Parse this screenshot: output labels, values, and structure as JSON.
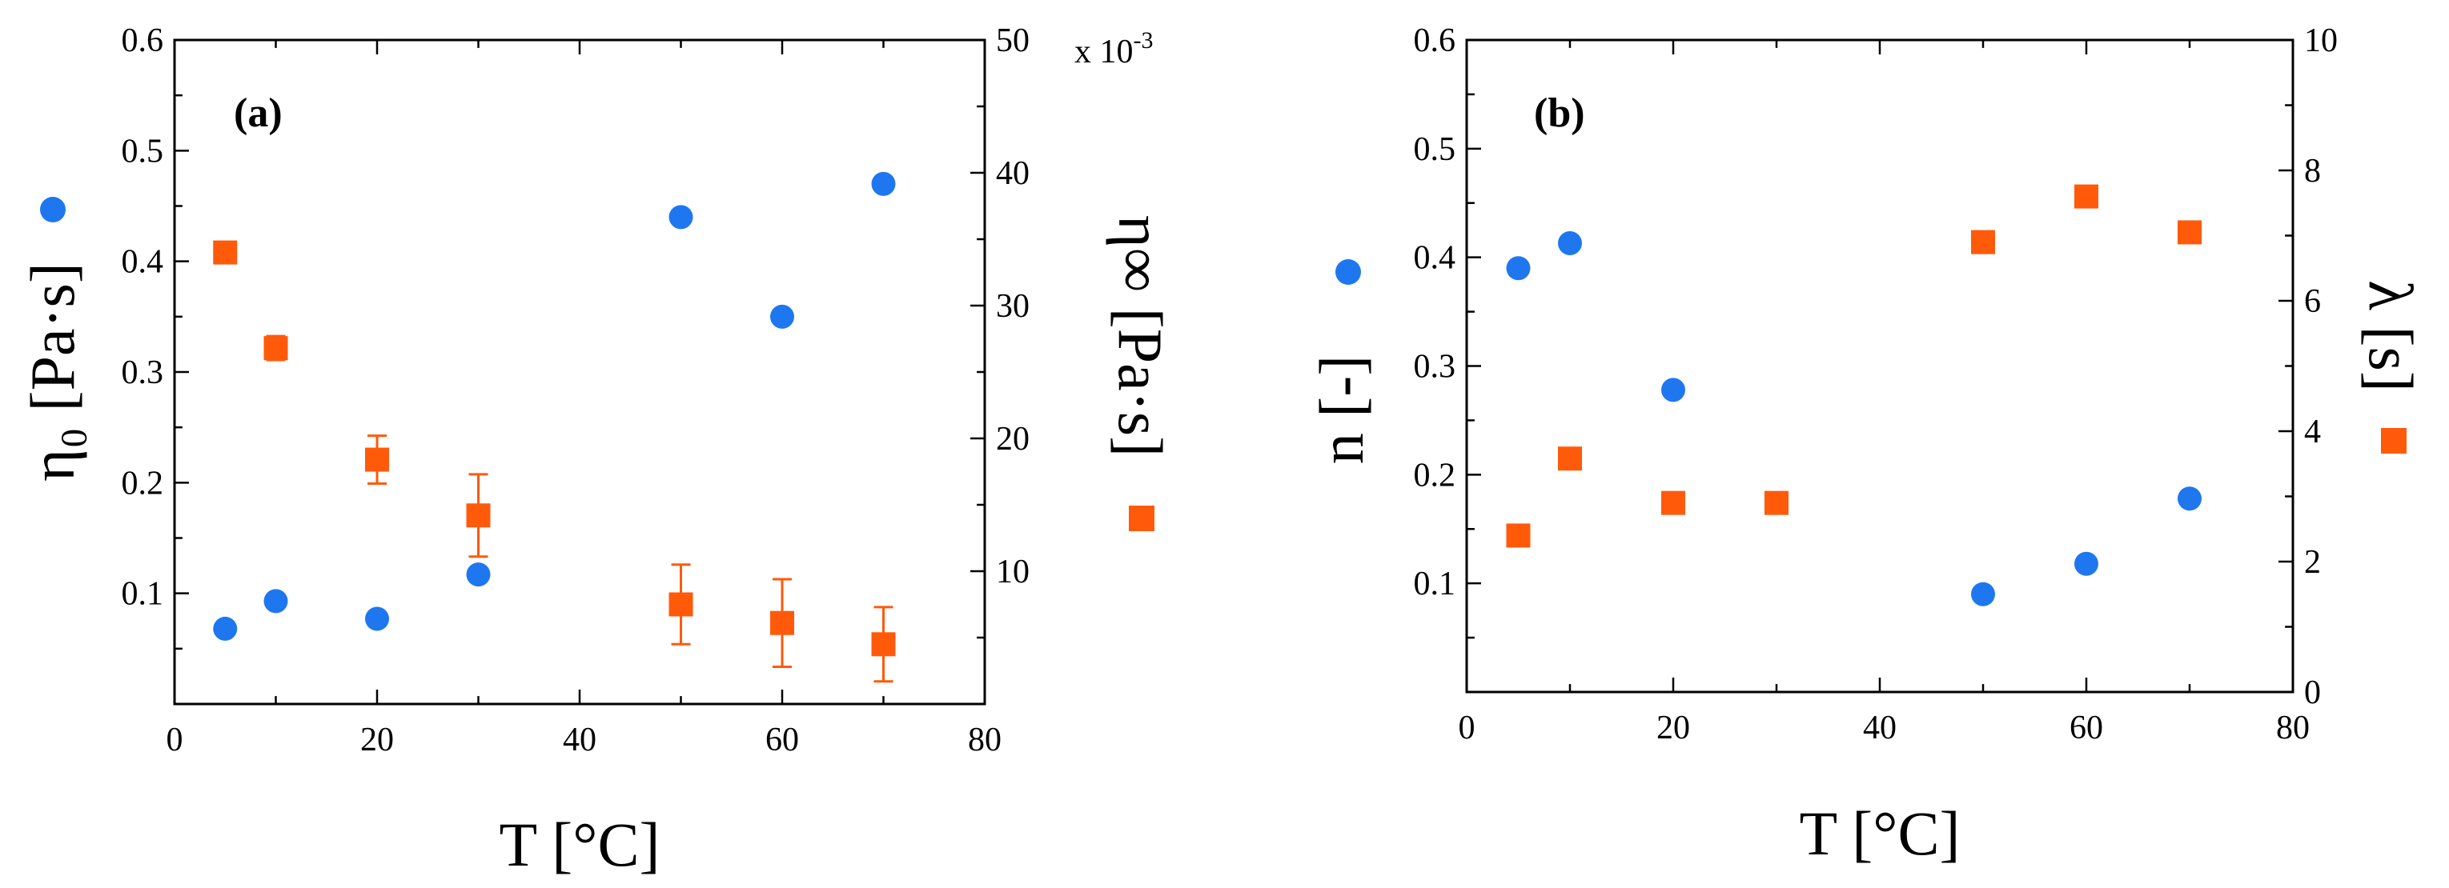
{
  "colors": {
    "eta0": "#1f77f0",
    "etainf": "#ff5a0a",
    "axis": "#000000"
  },
  "chart_data": [
    {
      "id": "a",
      "panel_label": "(a)",
      "type": "scatter",
      "xlabel": "T [°C]",
      "ylabel_left": "η₀ [Pa·s]",
      "ylabel_right": "η∞ [Pa·s]",
      "xlim": [
        0,
        80
      ],
      "x_ticks": [
        0,
        20,
        40,
        60,
        80
      ],
      "ylim_left": [
        0,
        0.6
      ],
      "y_ticks_left": [
        0.1,
        0.2,
        0.3,
        0.4,
        0.5,
        0.6
      ],
      "ylim_right": [
        0,
        50
      ],
      "y_ticks_right": [
        10,
        20,
        30,
        40,
        50
      ],
      "right_multiplier": "x 10",
      "right_multiplier_exp": "-3",
      "series": [
        {
          "name": "η₀",
          "axis": "left",
          "marker": "circle",
          "x": [
            5,
            10,
            20,
            30,
            50,
            60,
            70
          ],
          "y": [
            0.068,
            0.093,
            0.077,
            0.117,
            0.44,
            0.35,
            0.47
          ]
        },
        {
          "name": "η∞",
          "axis": "right",
          "marker": "square",
          "x": [
            5,
            10,
            20,
            30,
            50,
            60,
            70
          ],
          "y": [
            34,
            26.8,
            18.4,
            14.2,
            7.5,
            6.1,
            4.5
          ],
          "err": [
            0.6,
            0.9,
            1.8,
            3.1,
            3.0,
            3.3,
            2.8
          ]
        }
      ]
    },
    {
      "id": "b",
      "panel_label": "(b)",
      "type": "scatter",
      "xlabel": "T [°C]",
      "ylabel_left": "n [-]",
      "ylabel_right": "λ [s]",
      "xlim": [
        0,
        80
      ],
      "x_ticks": [
        0,
        20,
        40,
        60,
        80
      ],
      "ylim_left": [
        0,
        0.6
      ],
      "y_ticks_left": [
        0.1,
        0.2,
        0.3,
        0.4,
        0.5,
        0.6
      ],
      "ylim_right": [
        0,
        10
      ],
      "y_ticks_right": [
        0,
        2,
        4,
        6,
        8,
        10
      ],
      "series": [
        {
          "name": "n",
          "axis": "left",
          "marker": "circle",
          "x": [
            5,
            10,
            20,
            50,
            60,
            70
          ],
          "y": [
            0.39,
            0.413,
            0.278,
            0.09,
            0.118,
            0.178
          ]
        },
        {
          "name": "λ",
          "axis": "right",
          "marker": "square",
          "x": [
            5,
            10,
            20,
            30,
            50,
            60,
            70
          ],
          "y": [
            2.4,
            3.58,
            2.9,
            2.9,
            6.9,
            7.6,
            7.05
          ]
        }
      ]
    }
  ]
}
